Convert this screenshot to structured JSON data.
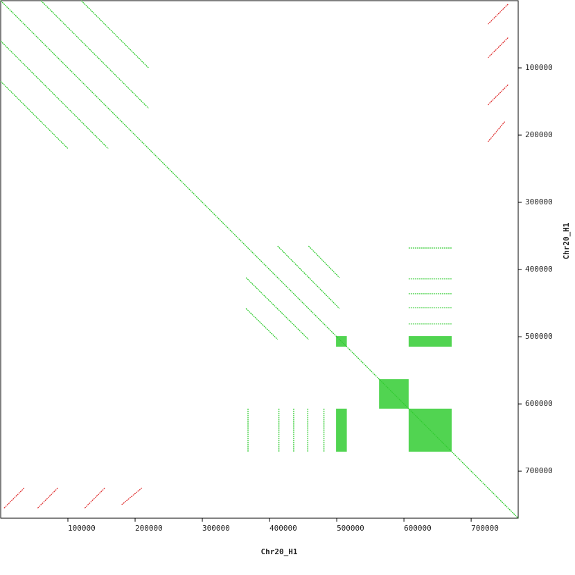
{
  "chart_data": {
    "type": "dotplot",
    "xlabel": "Chr20_H1",
    "ylabel": "Chr20_H1",
    "xlim": [
      0,
      770000
    ],
    "ylim": [
      0,
      770000
    ],
    "y_inverted": true,
    "xticks": [
      100000,
      200000,
      300000,
      400000,
      500000,
      600000,
      700000
    ],
    "yticks": [
      100000,
      200000,
      300000,
      400000,
      500000,
      600000,
      700000
    ],
    "forward": {
      "color": "#33cc33",
      "x0": [
        0,
        0,
        60000,
        0,
        120000,
        412000,
        365000,
        365000,
        458000,
        607000,
        607000,
        607000,
        607000,
        607000,
        368000,
        414000,
        436000,
        457000,
        481000
      ],
      "y0": [
        0,
        60000,
        0,
        120000,
        0,
        365000,
        412000,
        458000,
        365000,
        368000,
        414000,
        436000,
        457000,
        481000,
        607000,
        607000,
        607000,
        607000,
        607000
      ],
      "x1": [
        770000,
        160000,
        220000,
        100000,
        220000,
        504000,
        458000,
        412000,
        504000,
        671000,
        671000,
        671000,
        671000,
        671000,
        368000,
        414000,
        436000,
        457000,
        481000
      ],
      "y1": [
        770000,
        220000,
        160000,
        220000,
        100000,
        458000,
        504000,
        504000,
        412000,
        368000,
        414000,
        436000,
        457000,
        481000,
        671000,
        671000,
        671000,
        671000,
        671000
      ]
    },
    "reverse": {
      "color": "#e03030",
      "x0": [
        5000,
        55000,
        125000,
        180000,
        725000,
        725000,
        725000,
        725000
      ],
      "y0": [
        755000,
        755000,
        755000,
        750000,
        35000,
        85000,
        155000,
        210000
      ],
      "x1": [
        35000,
        85000,
        155000,
        210000,
        755000,
        755000,
        755000,
        750000
      ],
      "y1": [
        725000,
        725000,
        725000,
        725000,
        5000,
        55000,
        125000,
        180000
      ]
    },
    "blocks": {
      "color": "#33cc33",
      "x0": [
        499000,
        607000,
        607000,
        499000,
        563000
      ],
      "x1": [
        515000,
        671000,
        671000,
        515000,
        607000
      ],
      "y0": [
        499000,
        607000,
        499000,
        607000,
        563000
      ],
      "y1": [
        515000,
        671000,
        515000,
        671000,
        607000
      ]
    }
  }
}
